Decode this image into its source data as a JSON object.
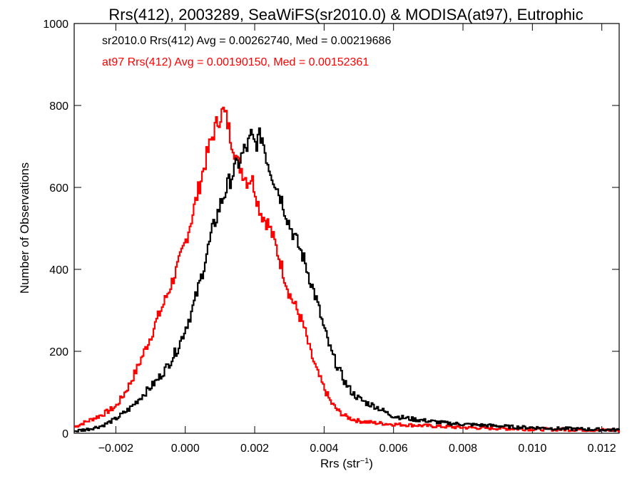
{
  "chart_data": {
    "type": "line",
    "style": "step-histogram",
    "title": "Rrs(412), 2003289, SeaWiFS(sr2010.0) & MODISA(at97), Eutrophic",
    "xlabel": "Rrs (str",
    "xlabel_sup": "−1",
    "xlabel_end": ")",
    "ylabel": "Number of Observations",
    "xlim": [
      -0.0032,
      0.0125
    ],
    "ylim": [
      0,
      1000
    ],
    "x_ticks": [
      -0.002,
      0.0,
      0.002,
      0.004,
      0.006,
      0.008,
      0.01,
      0.012
    ],
    "x_tick_labels": [
      "−0.002",
      "0.000",
      "0.002",
      "0.004",
      "0.006",
      "0.008",
      "0.010",
      "0.012"
    ],
    "y_ticks": [
      0,
      200,
      400,
      600,
      800,
      1000
    ],
    "y_tick_labels": [
      "0",
      "200",
      "400",
      "600",
      "800",
      "1000"
    ],
    "grid": false,
    "legend_position": "top-left",
    "series": [
      {
        "legend": "sr2010.0 Rrs(412) Avg = 0.00262740, Med = 0.00219686",
        "color": "#000000",
        "points": [
          [
            -0.0032,
            5
          ],
          [
            -0.0028,
            10
          ],
          [
            -0.0024,
            18
          ],
          [
            -0.002,
            35
          ],
          [
            -0.0016,
            60
          ],
          [
            -0.0012,
            95
          ],
          [
            -0.0008,
            130
          ],
          [
            -0.0005,
            165
          ],
          [
            -0.0002,
            210
          ],
          [
            0.0,
            255
          ],
          [
            0.0002,
            300
          ],
          [
            0.0004,
            360
          ],
          [
            0.0006,
            430
          ],
          [
            0.0008,
            500
          ],
          [
            0.001,
            555
          ],
          [
            0.0012,
            600
          ],
          [
            0.0014,
            640
          ],
          [
            0.0016,
            670
          ],
          [
            0.0017,
            690
          ],
          [
            0.0018,
            700
          ],
          [
            0.0019,
            725
          ],
          [
            0.002,
            705
          ],
          [
            0.0021,
            715
          ],
          [
            0.0022,
            730
          ],
          [
            0.0023,
            690
          ],
          [
            0.0024,
            655
          ],
          [
            0.0026,
            610
          ],
          [
            0.0028,
            565
          ],
          [
            0.003,
            510
          ],
          [
            0.0032,
            470
          ],
          [
            0.0034,
            430
          ],
          [
            0.0036,
            375
          ],
          [
            0.0038,
            320
          ],
          [
            0.004,
            255
          ],
          [
            0.0042,
            200
          ],
          [
            0.0044,
            160
          ],
          [
            0.0046,
            125
          ],
          [
            0.0048,
            100
          ],
          [
            0.005,
            85
          ],
          [
            0.0052,
            75
          ],
          [
            0.0055,
            65
          ],
          [
            0.0058,
            50
          ],
          [
            0.006,
            42
          ],
          [
            0.0065,
            35
          ],
          [
            0.007,
            30
          ],
          [
            0.0075,
            25
          ],
          [
            0.008,
            22
          ],
          [
            0.0085,
            20
          ],
          [
            0.009,
            18
          ],
          [
            0.0095,
            15
          ],
          [
            0.01,
            14
          ],
          [
            0.0105,
            12
          ],
          [
            0.011,
            11
          ],
          [
            0.0115,
            10
          ],
          [
            0.012,
            9
          ],
          [
            0.0125,
            8
          ]
        ]
      },
      {
        "legend": "at97 Rrs(412) Avg = 0.00190150, Med = 0.00152361",
        "color": "#ff0000",
        "points": [
          [
            -0.0032,
            15
          ],
          [
            -0.0028,
            30
          ],
          [
            -0.0024,
            45
          ],
          [
            -0.002,
            65
          ],
          [
            -0.0018,
            90
          ],
          [
            -0.0016,
            120
          ],
          [
            -0.0014,
            155
          ],
          [
            -0.0012,
            195
          ],
          [
            -0.001,
            235
          ],
          [
            -0.0008,
            280
          ],
          [
            -0.0006,
            320
          ],
          [
            -0.0004,
            365
          ],
          [
            -0.0002,
            410
          ],
          [
            0.0,
            465
          ],
          [
            0.0002,
            530
          ],
          [
            0.0004,
            600
          ],
          [
            0.0006,
            670
          ],
          [
            0.0008,
            730
          ],
          [
            0.001,
            775
          ],
          [
            0.0011,
            785
          ],
          [
            0.0012,
            765
          ],
          [
            0.0013,
            725
          ],
          [
            0.0014,
            700
          ],
          [
            0.0015,
            660
          ],
          [
            0.0016,
            650
          ],
          [
            0.0017,
            630
          ],
          [
            0.0018,
            615
          ],
          [
            0.0019,
            625
          ],
          [
            0.002,
            600
          ],
          [
            0.0021,
            560
          ],
          [
            0.0022,
            535
          ],
          [
            0.0024,
            510
          ],
          [
            0.0026,
            460
          ],
          [
            0.0028,
            400
          ],
          [
            0.003,
            340
          ],
          [
            0.0032,
            305
          ],
          [
            0.0034,
            265
          ],
          [
            0.0036,
            200
          ],
          [
            0.0038,
            150
          ],
          [
            0.004,
            110
          ],
          [
            0.0042,
            75
          ],
          [
            0.0044,
            55
          ],
          [
            0.0046,
            42
          ],
          [
            0.0048,
            35
          ],
          [
            0.005,
            30
          ],
          [
            0.0055,
            25
          ],
          [
            0.006,
            22
          ],
          [
            0.0065,
            20
          ],
          [
            0.007,
            18
          ],
          [
            0.0075,
            16
          ],
          [
            0.008,
            14
          ],
          [
            0.0085,
            13
          ],
          [
            0.009,
            12
          ],
          [
            0.0095,
            11
          ],
          [
            0.01,
            10
          ],
          [
            0.011,
            9
          ],
          [
            0.012,
            8
          ],
          [
            0.0125,
            7
          ]
        ]
      }
    ]
  }
}
